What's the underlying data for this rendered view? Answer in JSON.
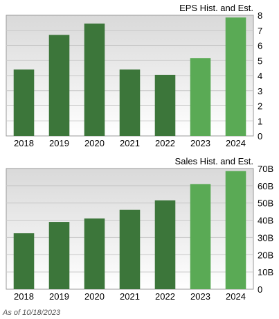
{
  "colors": {
    "historical": "#3c763a",
    "estimate": "#5aaa55",
    "plot_bg_top": "#d9d9d9",
    "plot_bg_bottom": "#ffffff",
    "grid": "#c8c8c8",
    "frame": "#9a9a9a"
  },
  "footer": "As of 10/18/2023",
  "chart_data": [
    {
      "type": "bar",
      "title": "EPS Hist. and Est.",
      "categories": [
        "2018",
        "2019",
        "2020",
        "2021",
        "2022",
        "2023",
        "2024"
      ],
      "values": [
        4.4,
        6.7,
        7.45,
        4.4,
        4.05,
        5.15,
        7.85
      ],
      "estimate": [
        false,
        false,
        false,
        false,
        false,
        true,
        true
      ],
      "ylim": [
        0,
        8
      ],
      "yticks": [
        0,
        1,
        2,
        3,
        4,
        5,
        6,
        7,
        8
      ],
      "ytick_labels": [
        "0",
        "1",
        "2",
        "3",
        "4",
        "5",
        "6",
        "7",
        "8"
      ],
      "grid": true,
      "y_axis_side": "right"
    },
    {
      "type": "bar",
      "title": "Sales Hist. and Est.",
      "categories": [
        "2018",
        "2019",
        "2020",
        "2021",
        "2022",
        "2023",
        "2024"
      ],
      "values": [
        32.5,
        39,
        41,
        46,
        51.5,
        61,
        68.5
      ],
      "estimate": [
        false,
        false,
        false,
        false,
        false,
        true,
        true
      ],
      "ylim": [
        0,
        70
      ],
      "yticks": [
        0,
        10,
        20,
        30,
        40,
        50,
        60,
        70
      ],
      "ytick_labels": [
        "0",
        "10B",
        "20B",
        "30B",
        "40B",
        "50B",
        "60B",
        "70B"
      ],
      "grid": true,
      "y_axis_side": "right"
    }
  ]
}
